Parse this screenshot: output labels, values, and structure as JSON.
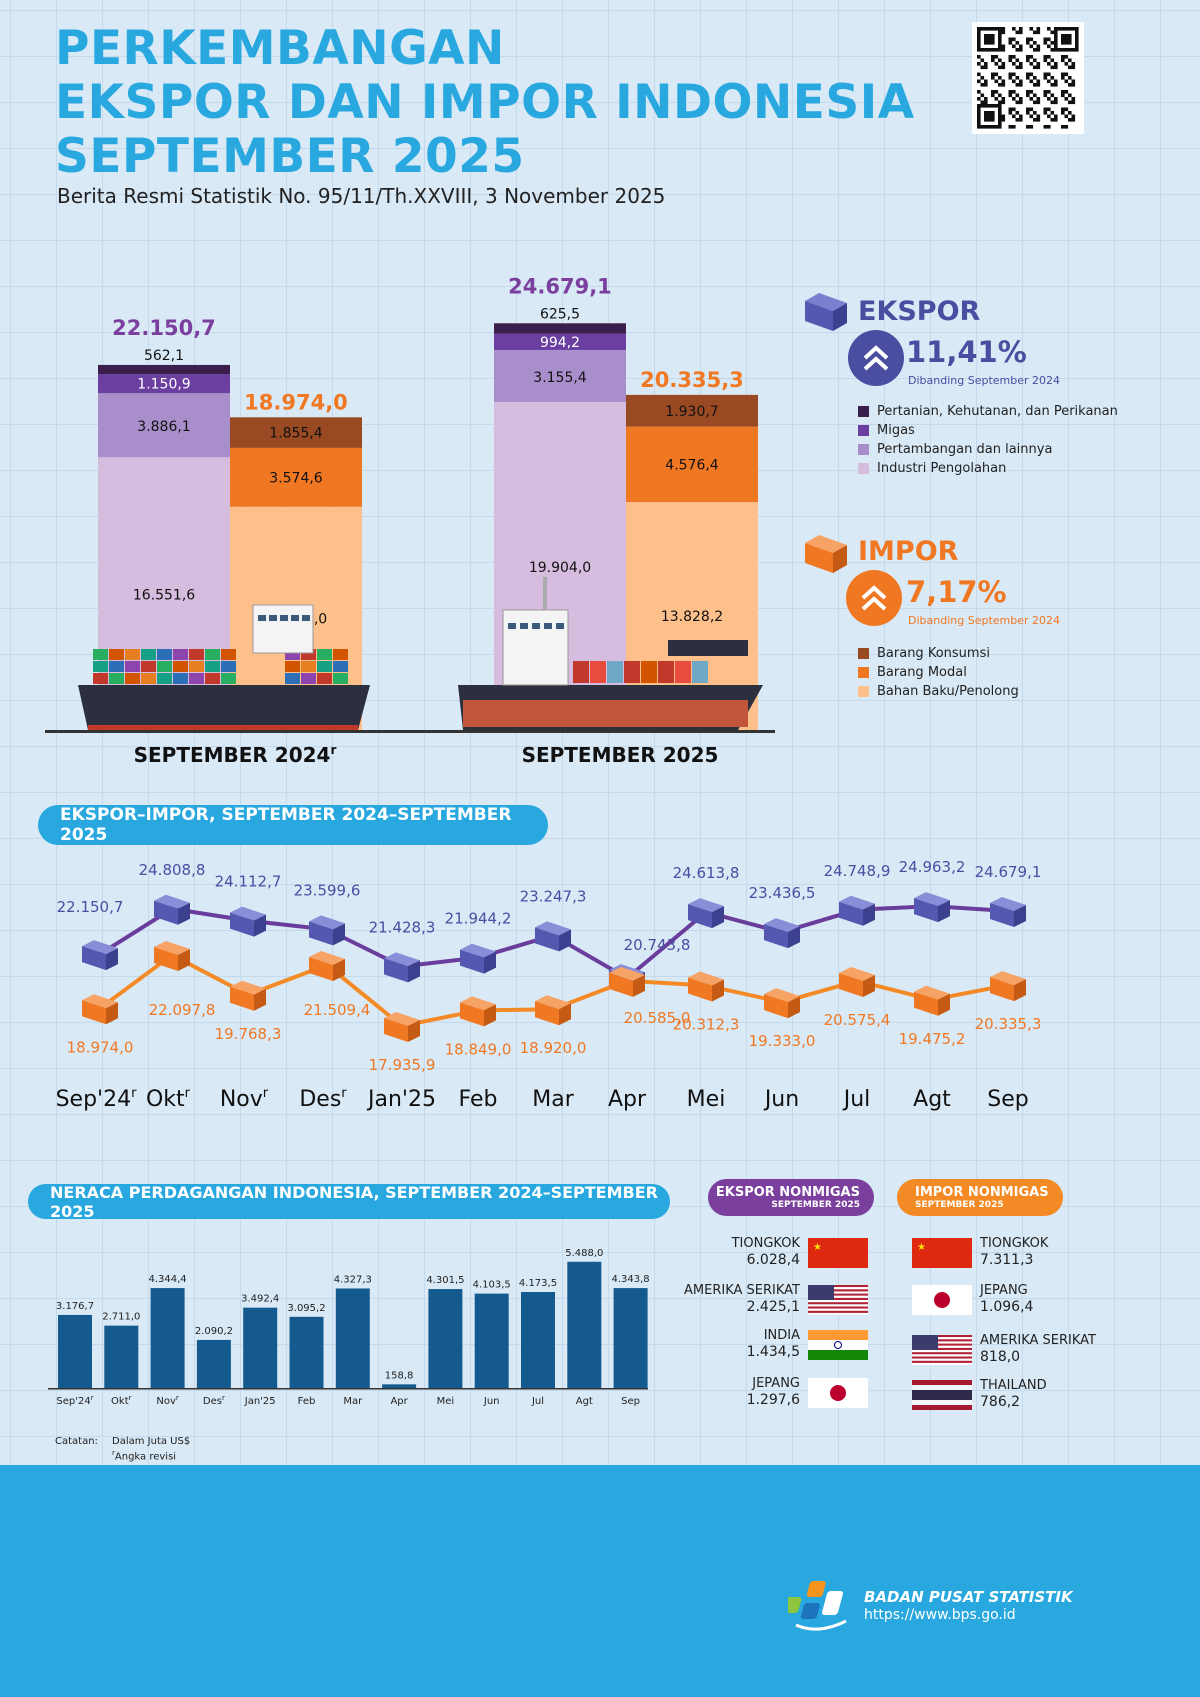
{
  "header": {
    "title_lines": [
      "PERKEMBANGAN",
      "EKSPOR DAN IMPOR INDONESIA",
      "SEPTEMBER 2025"
    ],
    "subtitle": "Berita Resmi Statistik No. 95/11/Th.XXVIII, 3 November 2025"
  },
  "colors": {
    "title": "#29a8e0",
    "ekspor": "#4b4da0",
    "impor": "#f07823",
    "purple": "#7b3f9e",
    "ekspor_segments": [
      "#3a1f4c",
      "#6b3fa0",
      "#a88fcb",
      "#d6bcde"
    ],
    "impor_segments": [
      "#9a4a22",
      "#f07823",
      "#fdc08a"
    ],
    "bar": "#155a8f"
  },
  "chart_data": [
    {
      "type": "bar",
      "stacked": true,
      "categories": [
        "SEPTEMBER 2024",
        "SEPTEMBER 2025"
      ],
      "category_superscripts": [
        "r",
        ""
      ],
      "ekspor": {
        "totals": [
          22150.7,
          24679.1
        ],
        "series": [
          {
            "name": "Pertanian, Kehutanan, dan Perikanan",
            "values": [
              562.1,
              625.5
            ]
          },
          {
            "name": "Migas",
            "values": [
              1150.9,
              994.2
            ]
          },
          {
            "name": "Pertambangan dan lainnya",
            "values": [
              3886.1,
              3155.4
            ]
          },
          {
            "name": "Industri Pengolahan",
            "values": [
              16551.6,
              19904.0
            ]
          }
        ]
      },
      "impor": {
        "totals": [
          18974.0,
          20335.3
        ],
        "series": [
          {
            "name": "Barang Konsumsi",
            "values": [
              1855.4,
              1930.7
            ]
          },
          {
            "name": "Barang Modal",
            "values": [
              3574.6,
              4576.4
            ]
          },
          {
            "name": "Bahan Baku/Penolong",
            "values": [
              13544.0,
              13828.2
            ]
          }
        ]
      }
    },
    {
      "type": "line",
      "title": "EKSPOR–IMPOR, SEPTEMBER 2024–SEPTEMBER 2025",
      "categories": [
        "Sep'24",
        "Okt",
        "Nov",
        "Des",
        "Jan'25",
        "Feb",
        "Mar",
        "Apr",
        "Mei",
        "Jun",
        "Jul",
        "Agt",
        "Sep"
      ],
      "revised": [
        true,
        true,
        true,
        true,
        false,
        false,
        false,
        false,
        false,
        false,
        false,
        false,
        false
      ],
      "series": [
        {
          "name": "Ekspor",
          "values": [
            22150.7,
            24808.8,
            24112.7,
            23599.6,
            21428.3,
            21944.2,
            23247.3,
            20743.8,
            24613.8,
            23436.5,
            24748.9,
            24963.2,
            24679.1
          ]
        },
        {
          "name": "Impor",
          "values": [
            18974.0,
            22097.8,
            19768.3,
            21509.4,
            17935.9,
            18849.0,
            18920.0,
            20585.0,
            20312.3,
            19333.0,
            20575.4,
            19475.2,
            20335.3
          ]
        }
      ]
    },
    {
      "type": "bar",
      "title": "NERACA PERDAGANGAN INDONESIA, SEPTEMBER 2024–SEPTEMBER 2025",
      "categories": [
        "Sep'24",
        "Okt",
        "Nov",
        "Des",
        "Jan'25",
        "Feb",
        "Mar",
        "Apr",
        "Mei",
        "Jun",
        "Jul",
        "Agt",
        "Sep"
      ],
      "revised": [
        true,
        true,
        true,
        true,
        false,
        false,
        false,
        false,
        false,
        false,
        false,
        false,
        false
      ],
      "values": [
        3176.7,
        2711.0,
        4344.4,
        2090.2,
        3492.4,
        3095.2,
        4327.3,
        158.8,
        4301.5,
        4103.5,
        4173.5,
        5488.0,
        4343.8
      ]
    }
  ],
  "ekspor_panel": {
    "label": "EKSPOR",
    "growth": "11,41%",
    "compare": "Dibanding September 2024",
    "direction": "up"
  },
  "impor_panel": {
    "label": "IMPOR",
    "growth": "7,17%",
    "compare": "Dibanding September 2024",
    "direction": "up"
  },
  "partners": {
    "ekspor": {
      "title": "EKSPOR NONMIGAS",
      "subtitle": "SEPTEMBER 2025",
      "items": [
        {
          "country": "TIONGKOK",
          "value": "6.028,4",
          "flag": "cn"
        },
        {
          "country": "AMERIKA SERIKAT",
          "value": "2.425,1",
          "flag": "us"
        },
        {
          "country": "INDIA",
          "value": "1.434,5",
          "flag": "in"
        },
        {
          "country": "JEPANG",
          "value": "1.297,6",
          "flag": "jp"
        }
      ]
    },
    "impor": {
      "title": "IMPOR NONMIGAS",
      "subtitle": "SEPTEMBER 2025",
      "items": [
        {
          "country": "TIONGKOK",
          "value": "7.311,3",
          "flag": "cn"
        },
        {
          "country": "JEPANG",
          "value": "1.096,4",
          "flag": "jp"
        },
        {
          "country": "AMERIKA SERIKAT",
          "value": "818,0",
          "flag": "us"
        },
        {
          "country": "THAILAND",
          "value": "786,2",
          "flag": "th"
        }
      ]
    }
  },
  "notes": {
    "label": "Catatan:",
    "unit": "Dalam Juta US$",
    "revision": "Angka revisi",
    "revision_mark": "r"
  },
  "footer": {
    "org": "BADAN PUSAT STATISTIK",
    "url": "https://www.bps.go.id"
  }
}
